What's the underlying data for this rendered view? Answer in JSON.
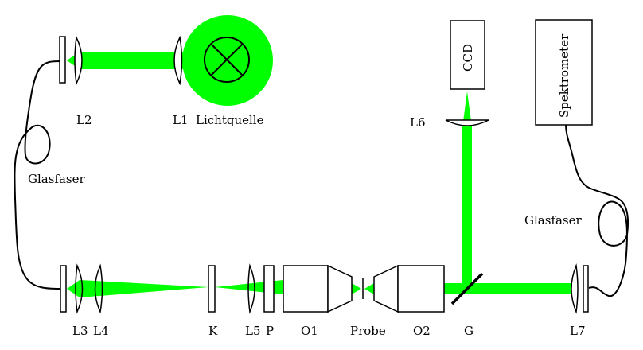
{
  "colors": {
    "beam": "#00ff00",
    "line": "#000000",
    "background": "#ffffff"
  },
  "labels": {
    "l2": "L2",
    "l1": "L1",
    "lichtquelle": "Lichtquelle",
    "glasfaser_left": "Glasfaser",
    "l3": "L3",
    "l4": "L4",
    "k": "K",
    "l5": "L5",
    "p": "P",
    "o1": "O1",
    "probe": "Probe",
    "o2": "O2",
    "g": "G",
    "l7": "L7",
    "l6": "L6",
    "ccd": "CCD",
    "spektrometer": "Spektrometer",
    "glasfaser_right": "Glasfaser"
  },
  "icons": {
    "lamp": "lamp-cross-icon"
  }
}
